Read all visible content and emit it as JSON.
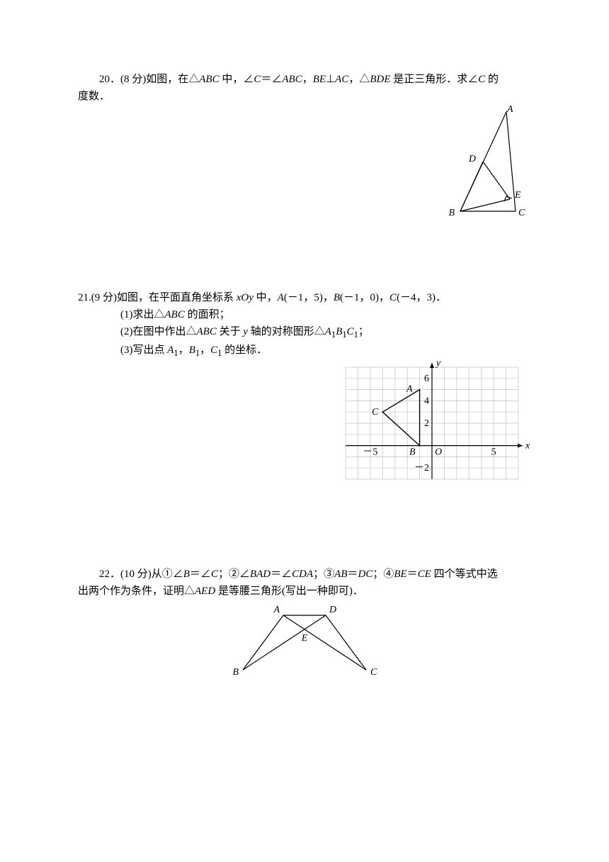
{
  "p20": {
    "number": "20",
    "points": "8",
    "text_before": "．(",
    "text_mid": " 分)如图，在△",
    "abc1": "ABC",
    "t2": " 中，∠",
    "c1": "C",
    "t3": "＝∠",
    "abc2": "ABC",
    "t4": "，",
    "be": "BE",
    "t5": "⊥",
    "ac": "AC",
    "t6": "，△",
    "bde": "BDE",
    "t7": " 是正三角形．求∠",
    "c2": "C",
    "t8": " 的",
    "line2": "度数．",
    "diagram": {
      "labels": {
        "A": "A",
        "B": "B",
        "C": "C",
        "D": "D",
        "E": "E"
      }
    }
  },
  "p21": {
    "number": "21",
    "points": "9",
    "t1": ".(",
    "t2": " 分)如图，在平面直角坐标系 ",
    "xoy": "xOy",
    "t3": " 中，",
    "A": "A",
    "Acoord": "(－1，5)",
    "comma1": "，",
    "B": "B",
    "Bcoord": "(－1，0)",
    "comma2": "，",
    "C": "C",
    "Ccoord": "(－4，3)",
    "period": "．",
    "sub1a": "(1)求出△",
    "sub1b": "ABC",
    "sub1c": " 的面积；",
    "sub2a": "(2)在图中作出△",
    "sub2b": "ABC",
    "sub2c": " 关于 ",
    "sub2d": "y",
    "sub2e": " 轴的对称图形△",
    "sub2f": "A",
    "sub2g": "1",
    "sub2h": "B",
    "sub2i": "1",
    "sub2j": "C",
    "sub2k": "1",
    "sub2l": "；",
    "sub3a": "(3)写出点 ",
    "sub3b": "A",
    "sub3c": "1",
    "sub3d": "，",
    "sub3e": "B",
    "sub3f": "1",
    "sub3g": "，",
    "sub3h": "C",
    "sub3i": "1",
    "sub3j": " 的坐标．",
    "chart": {
      "type": "coordinate-grid",
      "xrange": [
        -7,
        7
      ],
      "yrange": [
        -3,
        7
      ],
      "xticks": [
        -5,
        5
      ],
      "yticks": [
        -2,
        2,
        4,
        6
      ],
      "grid_color": "#c0c0c0",
      "labels": {
        "A": "A",
        "B": "B",
        "C": "C",
        "O": "O",
        "x": "x",
        "y": "y",
        "m5": "－5",
        "p5": "5",
        "m2": "－2",
        "p2": "2",
        "p4": "4",
        "p6": "6"
      },
      "points": {
        "A": [
          -1,
          5
        ],
        "B": [
          -1,
          0
        ],
        "C": [
          -4,
          3
        ]
      }
    }
  },
  "p22": {
    "number": "22",
    "points": "10",
    "t1": "．(",
    "t2": " 分)从①∠",
    "b": "B",
    "t3": "＝∠",
    "c": "C",
    "t4": "；②∠",
    "bad": "BAD",
    "t5": "＝∠",
    "cda": "CDA",
    "t6": "；③",
    "ab": "AB",
    "t7": "＝",
    "dc": "DC",
    "t8": "；④",
    "be": "BE",
    "t9": "＝",
    "ce": "CE",
    "t10": " 四个等式中选",
    "line2a": "出两个作为条件，证明△",
    "aed": "AED",
    "line2b": " 是等腰三角形(写出一种即可)．",
    "diagram": {
      "labels": {
        "A": "A",
        "B": "B",
        "C": "C",
        "D": "D",
        "E": "E"
      }
    }
  }
}
